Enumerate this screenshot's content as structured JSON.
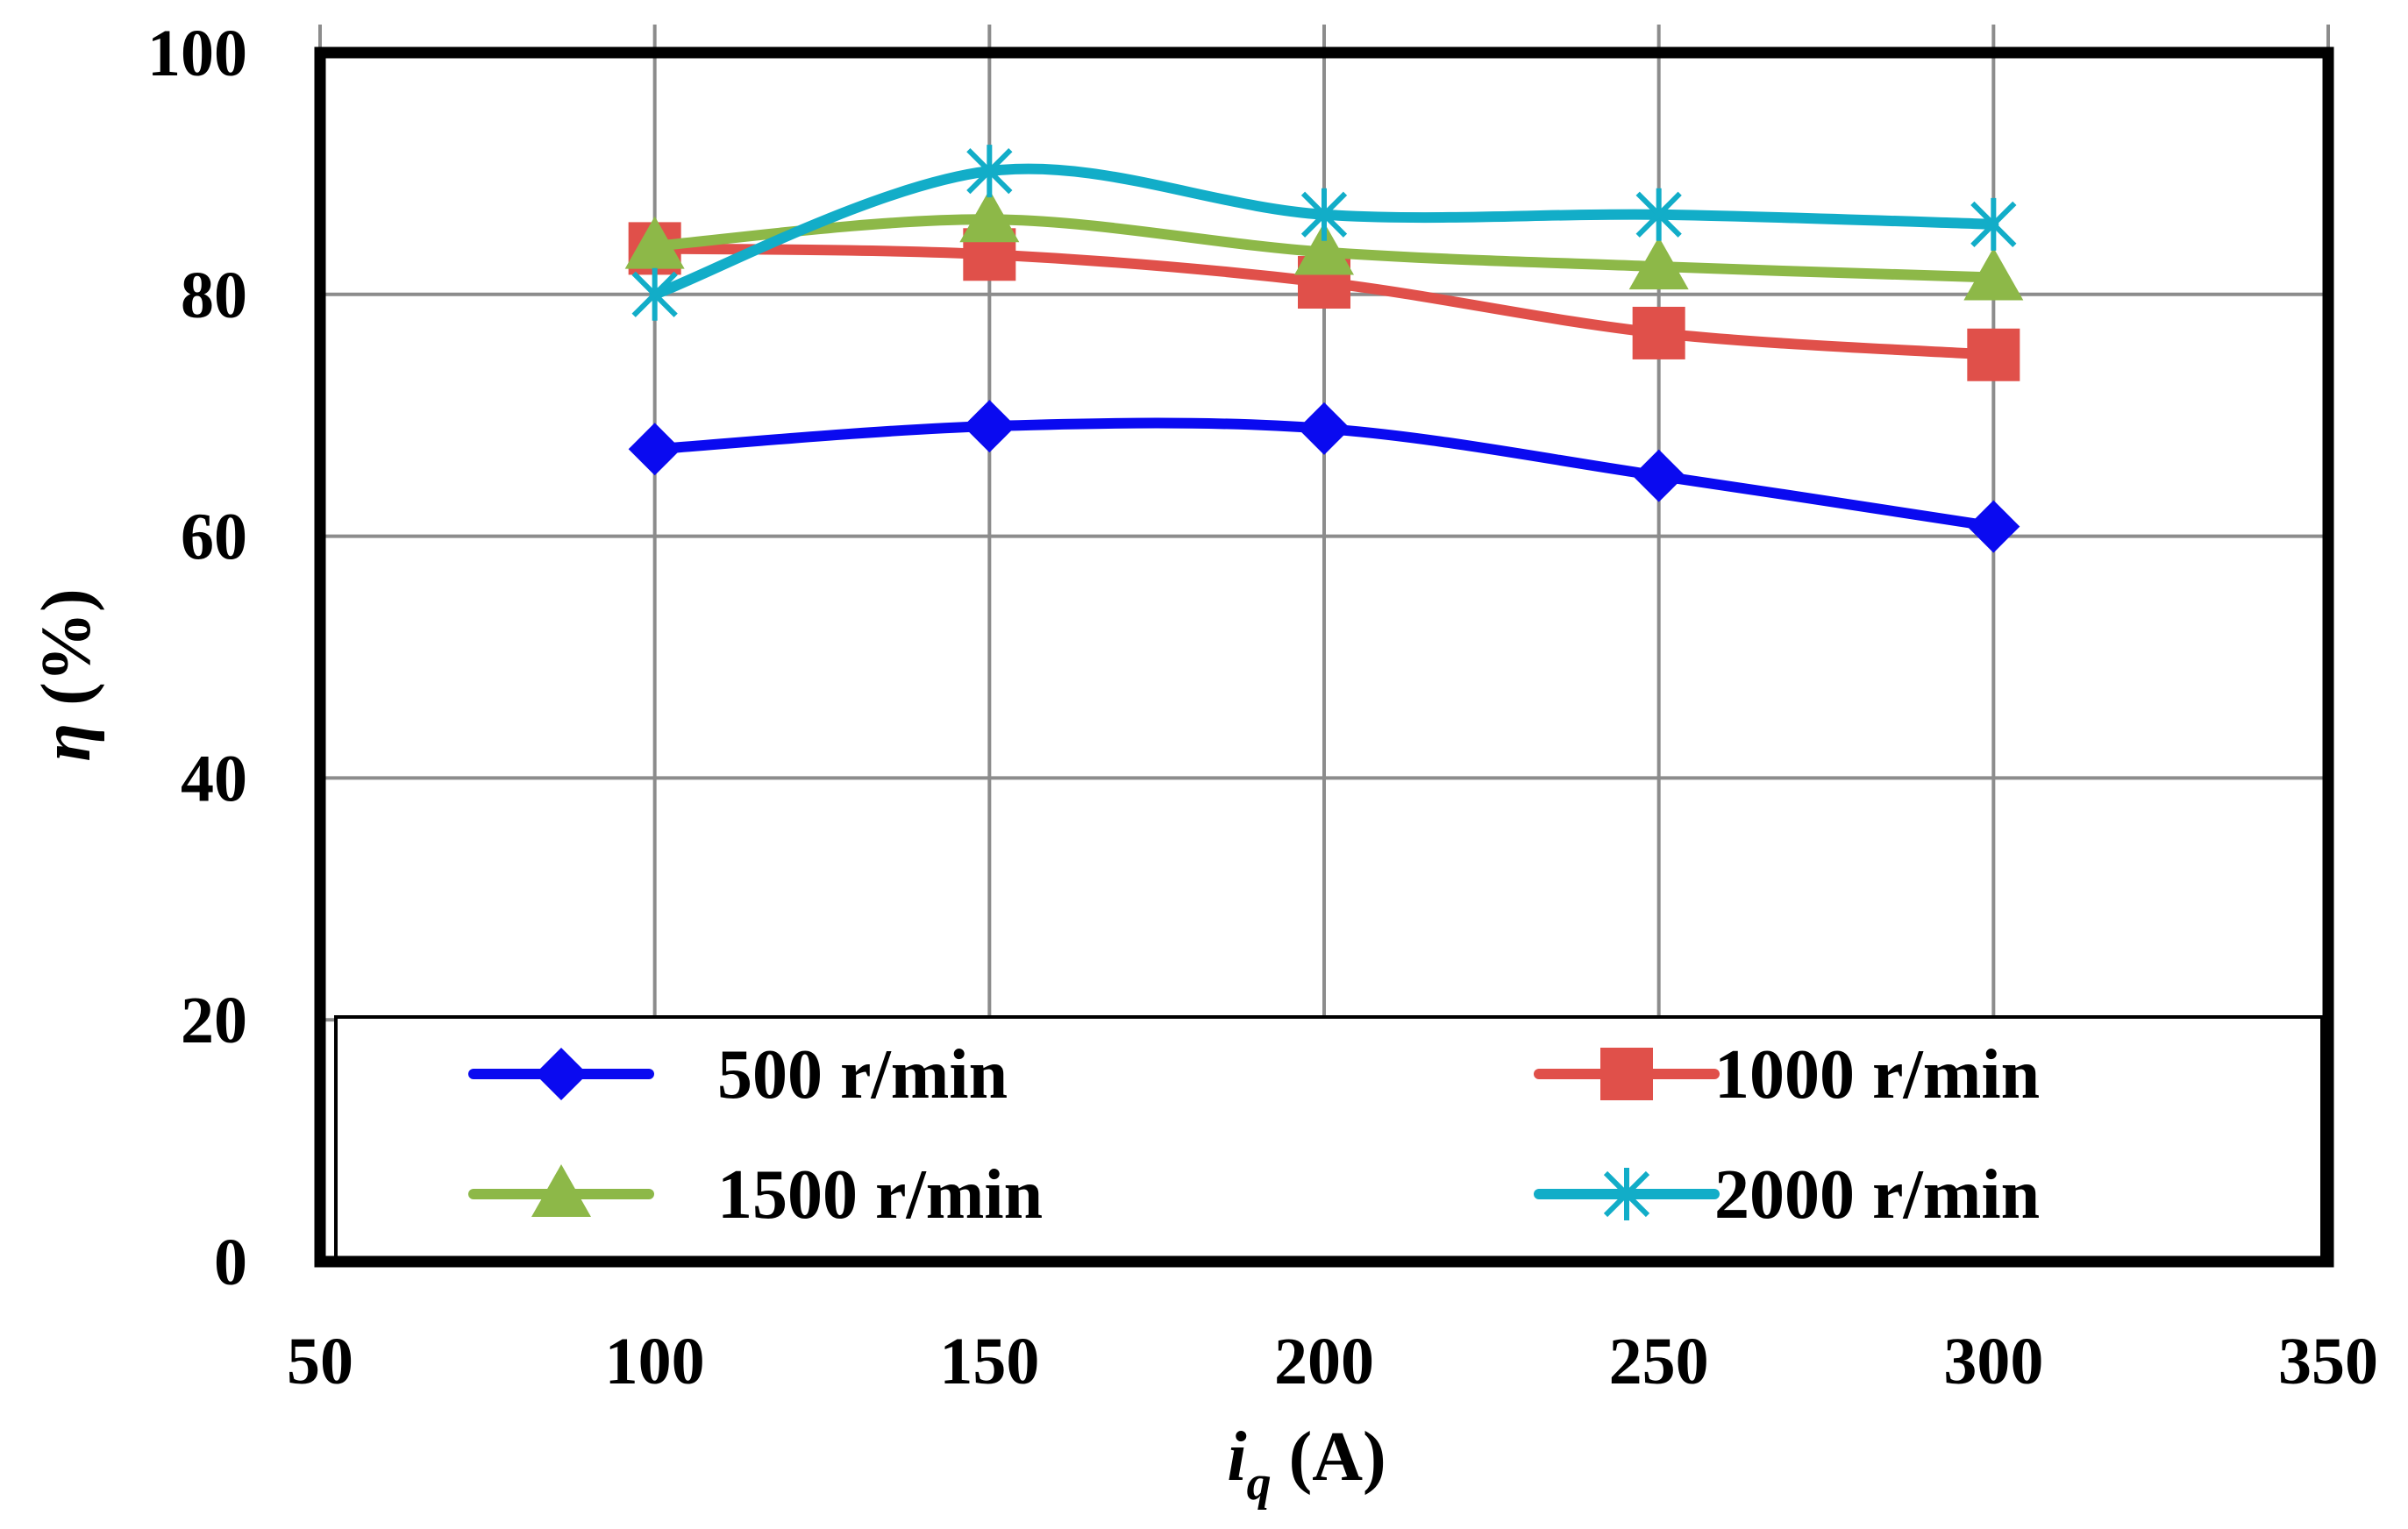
{
  "chart_data": {
    "type": "line",
    "title": "",
    "xlabel": {
      "main": "i",
      "sub": "q",
      "unit": " (A)"
    },
    "ylabel": {
      "symbol": "η",
      "unit": " (%)"
    },
    "xlim": [
      50,
      350
    ],
    "ylim": [
      0,
      100
    ],
    "x_ticks": [
      50,
      100,
      150,
      200,
      250,
      300,
      350
    ],
    "y_ticks": [
      0,
      20,
      40,
      60,
      80,
      100
    ],
    "x_tick_labels": [
      "50",
      "100",
      "150",
      "200",
      "250",
      "300",
      "350"
    ],
    "y_tick_labels": [
      "0",
      "20",
      "40",
      "60",
      "80",
      "100"
    ],
    "grid": true,
    "legend_placement": "bottom-inside",
    "x": [
      100,
      150,
      200,
      250,
      300
    ],
    "series": [
      {
        "name": "500 r/min",
        "marker": "diamond",
        "color": "#0A0AF0",
        "values": [
          67.2,
          69.1,
          68.9,
          65.0,
          60.8
        ]
      },
      {
        "name": "1000 r/min",
        "marker": "square",
        "color": "#E0504A",
        "values": [
          83.8,
          83.3,
          81.0,
          76.8,
          75.0
        ]
      },
      {
        "name": "1500 r/min",
        "marker": "triangle",
        "color": "#8DB848",
        "values": [
          84.0,
          86.2,
          83.5,
          82.3,
          81.4
        ]
      },
      {
        "name": "2000 r/min",
        "marker": "asterisk",
        "color": "#12ADC8",
        "values": [
          80.0,
          90.2,
          86.6,
          86.6,
          85.8
        ]
      }
    ]
  }
}
